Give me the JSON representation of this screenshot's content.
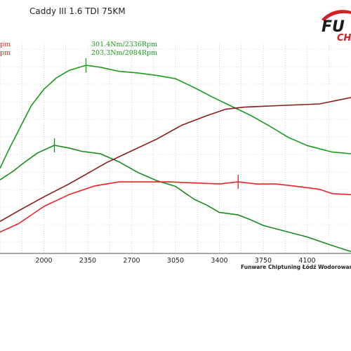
{
  "title": "Caddy III 1.6 TDI 75KM",
  "legend": {
    "left_top": "pm",
    "left_bottom": "pm",
    "tuned_torque": "301.4Nm/2336Rpm",
    "stock_torque": "203.3Nm/2084Rpm"
  },
  "footer": "Funware Chiptuning Łódź Wodorowanie T",
  "logo": {
    "main": "FU",
    "sub": "CH"
  },
  "colors": {
    "tuned_torque": "#1a9a1a",
    "stock_torque": "#1a8a1a",
    "tuned_power": "#8b1a1a",
    "stock_power": "#ee2222",
    "grid": "#b8b8b8",
    "logo_red": "#d42020"
  },
  "chart_data": {
    "type": "line",
    "x_ticks": [
      "2000",
      "2350",
      "2700",
      "3050",
      "3400",
      "3750",
      "4100"
    ],
    "x_range": [
      1650,
      4450
    ],
    "grid": true,
    "annotations": [
      {
        "label": "301.4Nm/2336Rpm",
        "series": "tuned_torque",
        "rpm": 2336
      },
      {
        "label": "203.3Nm/2084Rpm",
        "series": "stock_torque",
        "rpm": 2084
      }
    ],
    "series": [
      {
        "key": "tuned_torque",
        "points": [
          [
            1650,
            175
          ],
          [
            1720,
            198
          ],
          [
            1800,
            222
          ],
          [
            1900,
            252
          ],
          [
            2000,
            272
          ],
          [
            2100,
            286
          ],
          [
            2200,
            295
          ],
          [
            2336,
            301.4
          ],
          [
            2450,
            299
          ],
          [
            2600,
            294
          ],
          [
            2750,
            292
          ],
          [
            2900,
            289
          ],
          [
            3050,
            285
          ],
          [
            3200,
            274
          ],
          [
            3350,
            262
          ],
          [
            3500,
            251
          ],
          [
            3650,
            240
          ],
          [
            3800,
            227
          ],
          [
            3950,
            213
          ],
          [
            4100,
            203
          ],
          [
            4300,
            195
          ],
          [
            4450,
            193
          ]
        ]
      },
      {
        "key": "stock_torque",
        "points": [
          [
            1650,
            161
          ],
          [
            1750,
            171
          ],
          [
            1850,
            183
          ],
          [
            1950,
            194
          ],
          [
            2084,
            203.3
          ],
          [
            2200,
            200
          ],
          [
            2300,
            196
          ],
          [
            2450,
            193
          ],
          [
            2600,
            183
          ],
          [
            2750,
            170
          ],
          [
            2900,
            160
          ],
          [
            3050,
            153
          ],
          [
            3200,
            137
          ],
          [
            3300,
            130
          ],
          [
            3400,
            121
          ],
          [
            3550,
            118
          ],
          [
            3650,
            112
          ],
          [
            3750,
            105
          ],
          [
            3850,
            101
          ],
          [
            3950,
            97
          ],
          [
            4100,
            91
          ],
          [
            4250,
            83
          ],
          [
            4350,
            78
          ],
          [
            4450,
            73
          ]
        ]
      },
      {
        "key": "tuned_power",
        "unit": "kW",
        "points": [
          [
            1650,
            50
          ],
          [
            1800,
            60
          ],
          [
            2000,
            73
          ],
          [
            2200,
            85
          ],
          [
            2350,
            95
          ],
          [
            2500,
            105
          ],
          [
            2700,
            116
          ],
          [
            2900,
            127
          ],
          [
            3100,
            140
          ],
          [
            3300,
            149
          ],
          [
            3450,
            155
          ],
          [
            3600,
            157
          ],
          [
            3800,
            158
          ],
          [
            4000,
            159
          ],
          [
            4200,
            160
          ],
          [
            4450,
            166
          ]
        ]
      },
      {
        "key": "stock_power",
        "unit": "kW",
        "points": [
          [
            1650,
            40
          ],
          [
            1800,
            48
          ],
          [
            2000,
            64
          ],
          [
            2200,
            75
          ],
          [
            2400,
            83
          ],
          [
            2600,
            87
          ],
          [
            2800,
            87
          ],
          [
            3000,
            87
          ],
          [
            3200,
            86
          ],
          [
            3400,
            85
          ],
          [
            3550,
            87
          ],
          [
            3700,
            85
          ],
          [
            3850,
            85
          ],
          [
            4000,
            83
          ],
          [
            4200,
            80
          ],
          [
            4300,
            76
          ],
          [
            4450,
            75
          ]
        ]
      }
    ]
  }
}
